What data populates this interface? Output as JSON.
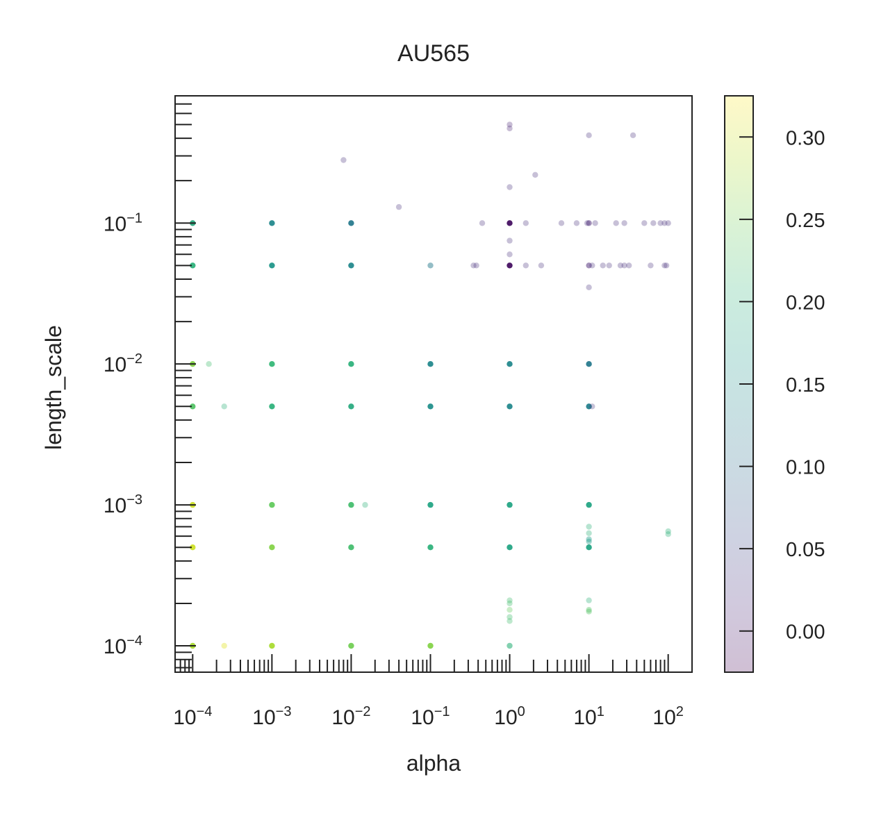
{
  "chart_data": {
    "type": "scatter",
    "title": "AU565",
    "xlabel": "alpha",
    "ylabel": "length_scale",
    "x_scale": "log",
    "y_scale": "log",
    "xlim": [
      6e-05,
      200
    ],
    "ylim": [
      6.5e-05,
      0.8
    ],
    "x_ticks": [
      {
        "base": "10",
        "exp": "−4"
      },
      {
        "base": "10",
        "exp": "−3"
      },
      {
        "base": "10",
        "exp": "−2"
      },
      {
        "base": "10",
        "exp": "−1"
      },
      {
        "base": "10",
        "exp": "0"
      },
      {
        "base": "10",
        "exp": "1"
      },
      {
        "base": "10",
        "exp": "2"
      }
    ],
    "y_ticks": [
      {
        "base": "10",
        "exp": "−4"
      },
      {
        "base": "10",
        "exp": "−3"
      },
      {
        "base": "10",
        "exp": "−2"
      },
      {
        "base": "10",
        "exp": "−1"
      }
    ],
    "grid": false,
    "colormap": "viridis",
    "colorbar": {
      "range": [
        -0.025,
        0.325
      ],
      "ticks": [
        "0.00",
        "0.05",
        "0.10",
        "0.15",
        "0.20",
        "0.25",
        "0.30"
      ],
      "tick_values": [
        0.0,
        0.05,
        0.1,
        0.15,
        0.2,
        0.25,
        0.3
      ]
    },
    "points": [
      {
        "x": 0.0001,
        "y": 0.1,
        "c": 0.19
      },
      {
        "x": 0.0001,
        "y": 0.05,
        "c": 0.2
      },
      {
        "x": 0.0001,
        "y": 0.01,
        "c": 0.26
      },
      {
        "x": 0.00016,
        "y": 0.01,
        "c": 0.22,
        "a": 0.35
      },
      {
        "x": 0.0001,
        "y": 0.005,
        "c": 0.23
      },
      {
        "x": 0.00025,
        "y": 0.005,
        "c": 0.2,
        "a": 0.35
      },
      {
        "x": 0.0001,
        "y": 0.001,
        "c": 0.3
      },
      {
        "x": 0.0001,
        "y": 0.0005,
        "c": 0.3
      },
      {
        "x": 0.0001,
        "y": 0.0001,
        "c": 0.28
      },
      {
        "x": 0.00025,
        "y": 0.0001,
        "c": 0.31,
        "a": 0.4
      },
      {
        "x": 0.001,
        "y": 0.1,
        "c": 0.14
      },
      {
        "x": 0.001,
        "y": 0.05,
        "c": 0.16
      },
      {
        "x": 0.001,
        "y": 0.01,
        "c": 0.21
      },
      {
        "x": 0.001,
        "y": 0.005,
        "c": 0.2
      },
      {
        "x": 0.001,
        "y": 0.001,
        "c": 0.24
      },
      {
        "x": 0.001,
        "y": 0.0005,
        "c": 0.26
      },
      {
        "x": 0.001,
        "y": 0.0001,
        "c": 0.28
      },
      {
        "x": 0.01,
        "y": 0.1,
        "c": 0.12
      },
      {
        "x": 0.01,
        "y": 0.05,
        "c": 0.14
      },
      {
        "x": 0.01,
        "y": 0.01,
        "c": 0.2
      },
      {
        "x": 0.01,
        "y": 0.005,
        "c": 0.19
      },
      {
        "x": 0.01,
        "y": 0.001,
        "c": 0.22
      },
      {
        "x": 0.015,
        "y": 0.001,
        "c": 0.2,
        "a": 0.35
      },
      {
        "x": 0.01,
        "y": 0.0005,
        "c": 0.22
      },
      {
        "x": 0.01,
        "y": 0.0001,
        "c": 0.25
      },
      {
        "x": 0.008,
        "y": 0.28,
        "c": 0.02,
        "a": 0.3
      },
      {
        "x": 0.04,
        "y": 0.13,
        "c": 0.02,
        "a": 0.3
      },
      {
        "x": 0.1,
        "y": 0.05,
        "c": 0.12,
        "a": 0.5
      },
      {
        "x": 0.1,
        "y": 0.01,
        "c": 0.14
      },
      {
        "x": 0.1,
        "y": 0.005,
        "c": 0.15
      },
      {
        "x": 0.1,
        "y": 0.001,
        "c": 0.18
      },
      {
        "x": 0.1,
        "y": 0.0005,
        "c": 0.2
      },
      {
        "x": 0.1,
        "y": 0.0001,
        "c": 0.26
      },
      {
        "x": 0.35,
        "y": 0.05,
        "c": 0.02,
        "a": 0.3
      },
      {
        "x": 0.38,
        "y": 0.05,
        "c": 0.02,
        "a": 0.3
      },
      {
        "x": 0.45,
        "y": 0.1,
        "c": 0.02,
        "a": 0.3
      },
      {
        "x": 1,
        "y": 0.5,
        "c": 0.01,
        "a": 0.3
      },
      {
        "x": 1,
        "y": 0.47,
        "c": 0.01,
        "a": 0.3
      },
      {
        "x": 1,
        "y": 0.18,
        "c": 0.02,
        "a": 0.3
      },
      {
        "x": 1,
        "y": 0.1,
        "c": -0.01
      },
      {
        "x": 1,
        "y": 0.075,
        "c": 0.02,
        "a": 0.3
      },
      {
        "x": 1,
        "y": 0.06,
        "c": 0.02,
        "a": 0.3
      },
      {
        "x": 1,
        "y": 0.05,
        "c": -0.01
      },
      {
        "x": 1.6,
        "y": 0.05,
        "c": 0.02,
        "a": 0.3
      },
      {
        "x": 1.6,
        "y": 0.1,
        "c": 0.02,
        "a": 0.3
      },
      {
        "x": 2.1,
        "y": 0.22,
        "c": 0.02,
        "a": 0.3
      },
      {
        "x": 2.5,
        "y": 0.05,
        "c": 0.02,
        "a": 0.3
      },
      {
        "x": 1,
        "y": 0.01,
        "c": 0.14
      },
      {
        "x": 1,
        "y": 0.005,
        "c": 0.14
      },
      {
        "x": 1,
        "y": 0.001,
        "c": 0.18
      },
      {
        "x": 1,
        "y": 0.0005,
        "c": 0.18
      },
      {
        "x": 1,
        "y": 0.00021,
        "c": 0.22,
        "a": 0.35
      },
      {
        "x": 1,
        "y": 0.0002,
        "c": 0.22,
        "a": 0.35
      },
      {
        "x": 1,
        "y": 0.00018,
        "c": 0.24,
        "a": 0.35
      },
      {
        "x": 1,
        "y": 0.00016,
        "c": 0.22,
        "a": 0.35
      },
      {
        "x": 1,
        "y": 0.00015,
        "c": 0.22,
        "a": 0.35
      },
      {
        "x": 1,
        "y": 0.0001,
        "c": 0.2,
        "a": 0.6
      },
      {
        "x": 4.5,
        "y": 0.1,
        "c": 0.02,
        "a": 0.3
      },
      {
        "x": 7,
        "y": 0.1,
        "c": 0.02,
        "a": 0.3
      },
      {
        "x": 9.5,
        "y": 0.1,
        "c": 0.02,
        "a": 0.3
      },
      {
        "x": 10,
        "y": 0.42,
        "c": 0.02,
        "a": 0.3
      },
      {
        "x": 10,
        "y": 0.1,
        "c": 0.01,
        "a": 0.5
      },
      {
        "x": 12,
        "y": 0.1,
        "c": 0.02,
        "a": 0.3
      },
      {
        "x": 10,
        "y": 0.05,
        "c": 0.01,
        "a": 0.5
      },
      {
        "x": 11,
        "y": 0.05,
        "c": 0.02,
        "a": 0.3
      },
      {
        "x": 15,
        "y": 0.05,
        "c": 0.02,
        "a": 0.3
      },
      {
        "x": 18,
        "y": 0.05,
        "c": 0.02,
        "a": 0.3
      },
      {
        "x": 10,
        "y": 0.035,
        "c": 0.02,
        "a": 0.3
      },
      {
        "x": 10,
        "y": 0.01,
        "c": 0.12
      },
      {
        "x": 10,
        "y": 0.005,
        "c": 0.13
      },
      {
        "x": 11,
        "y": 0.005,
        "c": 0.03,
        "a": 0.3
      },
      {
        "x": 10,
        "y": 0.001,
        "c": 0.18
      },
      {
        "x": 10,
        "y": 0.0007,
        "c": 0.2,
        "a": 0.35
      },
      {
        "x": 10,
        "y": 0.00063,
        "c": 0.2,
        "a": 0.35
      },
      {
        "x": 10,
        "y": 0.00057,
        "c": 0.17,
        "a": 0.4
      },
      {
        "x": 10,
        "y": 0.00055,
        "c": 0.17,
        "a": 0.4
      },
      {
        "x": 10,
        "y": 0.0005,
        "c": 0.18
      },
      {
        "x": 10,
        "y": 0.00021,
        "c": 0.2,
        "a": 0.35
      },
      {
        "x": 10,
        "y": 0.00018,
        "c": 0.23,
        "a": 0.4
      },
      {
        "x": 10,
        "y": 0.000175,
        "c": 0.23,
        "a": 0.4
      },
      {
        "x": 22,
        "y": 0.1,
        "c": 0.02,
        "a": 0.3
      },
      {
        "x": 28,
        "y": 0.1,
        "c": 0.02,
        "a": 0.3
      },
      {
        "x": 36,
        "y": 0.42,
        "c": 0.02,
        "a": 0.3
      },
      {
        "x": 25,
        "y": 0.05,
        "c": 0.02,
        "a": 0.3
      },
      {
        "x": 28,
        "y": 0.05,
        "c": 0.02,
        "a": 0.3
      },
      {
        "x": 32,
        "y": 0.05,
        "c": 0.02,
        "a": 0.3
      },
      {
        "x": 50,
        "y": 0.1,
        "c": 0.02,
        "a": 0.3
      },
      {
        "x": 65,
        "y": 0.1,
        "c": 0.02,
        "a": 0.3
      },
      {
        "x": 80,
        "y": 0.1,
        "c": 0.02,
        "a": 0.3
      },
      {
        "x": 90,
        "y": 0.1,
        "c": 0.02,
        "a": 0.3
      },
      {
        "x": 100,
        "y": 0.1,
        "c": 0.02,
        "a": 0.3
      },
      {
        "x": 60,
        "y": 0.05,
        "c": 0.02,
        "a": 0.3
      },
      {
        "x": 90,
        "y": 0.05,
        "c": 0.02,
        "a": 0.3
      },
      {
        "x": 95,
        "y": 0.05,
        "c": 0.02,
        "a": 0.3
      },
      {
        "x": 100,
        "y": 0.00065,
        "c": 0.2,
        "a": 0.35
      },
      {
        "x": 100,
        "y": 0.00062,
        "c": 0.2,
        "a": 0.35
      }
    ]
  }
}
